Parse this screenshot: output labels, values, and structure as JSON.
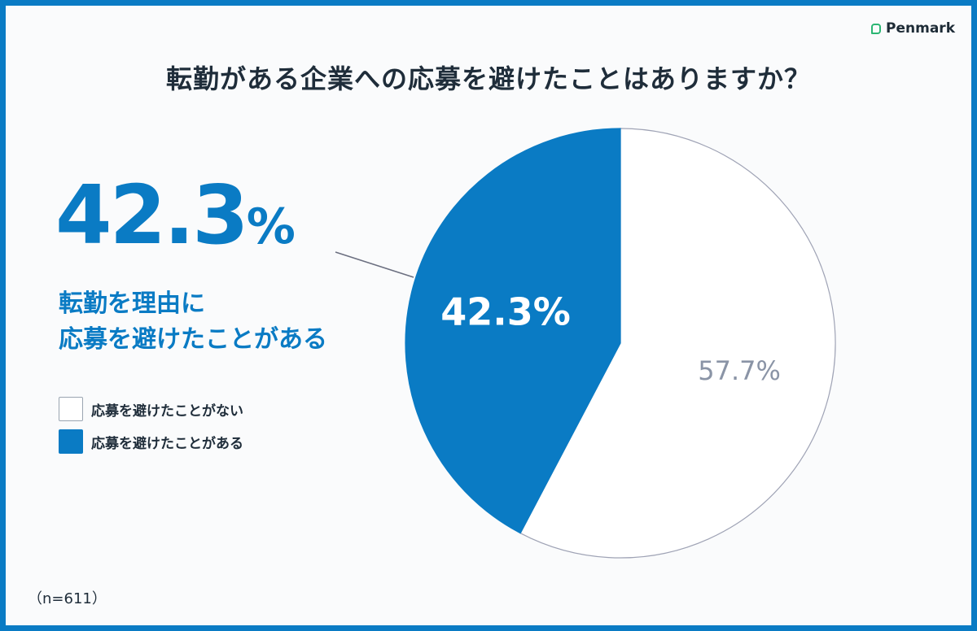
{
  "brand": {
    "name": "Penmark",
    "accent": "#2bb673"
  },
  "colors": {
    "primary": "#0a7bc4",
    "background": "#fafbfc",
    "text": "#1f2d3a",
    "muted": "#8a94a6"
  },
  "highlight": {
    "number": "42.3",
    "unit": "%",
    "line1": "転勤を理由に",
    "line2": "応募を避けたことがある"
  },
  "sample_note": "（n=611）",
  "chart_data": {
    "type": "pie",
    "title": "転勤がある企業への応募を避けたことはありますか？",
    "start_angle_deg": 0,
    "direction": "clockwise",
    "legend_placement": "left",
    "slices": [
      {
        "label": "応募を避けたことがない",
        "value": 57.7,
        "display": "57.7%",
        "color": "#ffffff",
        "label_color": "#8a94a6"
      },
      {
        "label": "応募を避けたことがある",
        "value": 42.3,
        "display": "42.3%",
        "color": "#0a7bc4",
        "label_color": "#ffffff"
      }
    ]
  }
}
